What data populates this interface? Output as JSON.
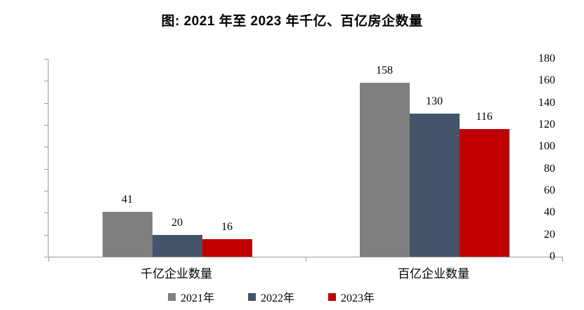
{
  "title": "图: 2021 年至 2023 年千亿、百亿房企数量",
  "chart_data": {
    "type": "bar",
    "title": "图: 2021 年至 2023 年千亿、百亿房企数量",
    "categories": [
      "千亿企业数量",
      "百亿企业数量"
    ],
    "series": [
      {
        "name": "2021年",
        "color": "#7F7F7F",
        "values": [
          41,
          158
        ]
      },
      {
        "name": "2022年",
        "color": "#44546A",
        "values": [
          20,
          130
        ]
      },
      {
        "name": "2023年",
        "color": "#C00000",
        "values": [
          16,
          116
        ]
      }
    ],
    "ylim": [
      0,
      180
    ],
    "ytick_step": 20,
    "ytick_labels": [
      "0",
      "20",
      "40",
      "60",
      "80",
      "100",
      "120",
      "140",
      "160",
      "180"
    ],
    "grid": false,
    "data_labels": true,
    "legend_position": "bottom",
    "axis_color": "#9a9a9a",
    "text_color": "#000000"
  }
}
